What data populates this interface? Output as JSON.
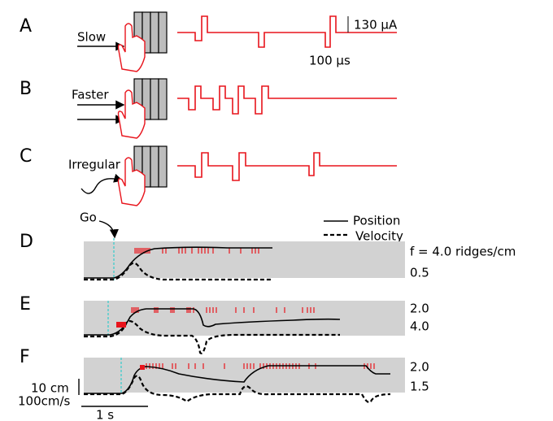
{
  "panels": [
    {
      "label": "A",
      "stimulus": "Slow"
    },
    {
      "label": "B",
      "stimulus": "Faster"
    },
    {
      "label": "C",
      "stimulus": "Irregular"
    },
    {
      "label": "D",
      "annotations": [
        "f = 4.0 ridges/cm",
        "0.5"
      ]
    },
    {
      "label": "E",
      "annotations": [
        "2.0",
        "4.0"
      ]
    },
    {
      "label": "F",
      "annotations": [
        "2.0",
        "1.5"
      ]
    }
  ],
  "scale_bars": {
    "current": "130 μA",
    "time_pulse": "100 μs",
    "position": "10 cm",
    "velocity": "100cm/s",
    "time": "1 s"
  },
  "go_label": "Go",
  "legend": {
    "position": "Position",
    "velocity": "Velocity"
  }
}
